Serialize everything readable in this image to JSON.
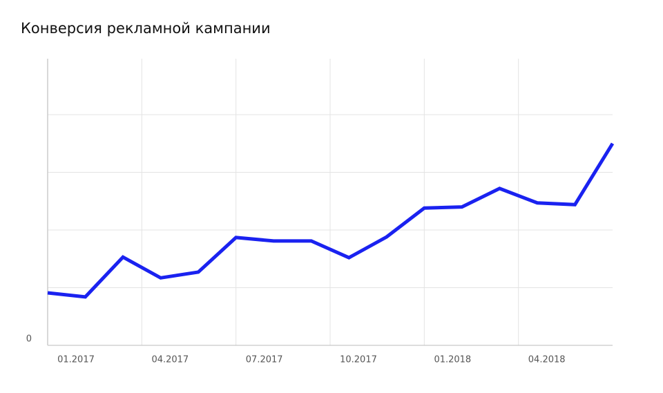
{
  "chart_data": {
    "type": "line",
    "title": "Конверсия рекламной кампании",
    "x": [
      0,
      1.2,
      2.4,
      3.6,
      4.8,
      6,
      7.2,
      8.4,
      9.6,
      10.8,
      12,
      13.2,
      14.4,
      15.6,
      16.8,
      18
    ],
    "series": [
      {
        "color": "#1a22f0",
        "values": [
          0.91,
          0.84,
          1.53,
          1.17,
          1.27,
          1.87,
          1.81,
          1.81,
          1.52,
          1.88,
          2.38,
          2.4,
          2.72,
          2.47,
          2.44,
          3.5
        ]
      }
    ],
    "xlim": [
      0,
      18
    ],
    "xticks": [
      {
        "value": 0,
        "label": "01.2017"
      },
      {
        "value": 3,
        "label": "04.2017"
      },
      {
        "value": 6,
        "label": "07.2017"
      },
      {
        "value": 9,
        "label": "10.2017"
      },
      {
        "value": 12,
        "label": "01.2018"
      },
      {
        "value": 15,
        "label": "04.2018"
      }
    ],
    "ylim": [
      0,
      5
    ],
    "yticks": [
      0
    ],
    "ygrid": [
      1,
      2,
      3,
      4
    ],
    "grid": true
  }
}
